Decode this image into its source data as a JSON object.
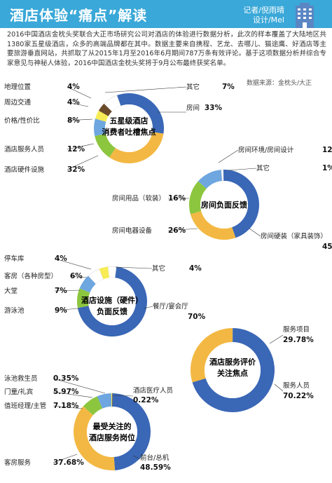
{
  "header": {
    "title": "酒店体验“痛点”解读",
    "credit_line1": "记者/倪雨晴",
    "credit_line2": "设计/Mel"
  },
  "intro": "2016中国酒店金枕头奖联合大正市场研究公司对酒店的体验进行数据分析，此次的样本覆盖了大陆地区共1380家五星级酒店，众多的高端品牌都在其中。数据主要来自携程、艺龙、去哪儿、猫途鹰、好酒店等主要旅游垂直网站，共抓取了从2015年1月至2016年6月期间787万条有效评论。基于这项数据分析并综合专家意见与神秘人体验，2016中国酒店金枕头奖将于9月公布最终获奖名单。",
  "source": "数据来源：金枕头/大正",
  "colors": {
    "blue": "#3a67b6",
    "light_blue": "#6ea6e0",
    "yellow": "#f3b843",
    "green": "#8cc63e",
    "brown": "#6b4a2b",
    "pale_yellow": "#f7ec55",
    "header": "#3aa8d8"
  },
  "chart_data": [
    {
      "type": "pie",
      "title": "五星级酒店消费者吐槽焦点",
      "slices": [
        {
          "label": "房间",
          "value": 33,
          "display": "33%",
          "color": "#3a67b6"
        },
        {
          "label": "酒店硬件设施",
          "value": 32,
          "display": "32%",
          "color": "#f3b843"
        },
        {
          "label": "酒店服务人员",
          "value": 12,
          "display": "12%",
          "color": "#8cc63e"
        },
        {
          "label": "价格/性价比",
          "value": 8,
          "display": "8%",
          "color": "#6ea6e0"
        },
        {
          "label": "周边交通",
          "value": 4,
          "display": "4%",
          "color": "#f7ec55"
        },
        {
          "label": "地理位置",
          "value": 4,
          "display": "4%",
          "color": "#6b4a2b"
        },
        {
          "label": "其它",
          "value": 7,
          "display": "7%",
          "color": "#ffffff"
        }
      ]
    },
    {
      "type": "pie",
      "title": "房间负面反馈",
      "slices": [
        {
          "label": "房间环境/房间设计",
          "value": 12,
          "display": "12%",
          "color": "#6ea6e0"
        },
        {
          "label": "其它",
          "value": 1,
          "display": "1%",
          "color": "#ffffff"
        },
        {
          "label": "房间硬装（家具装饰）",
          "value": 45,
          "display": "45%",
          "color": "#3a67b6"
        },
        {
          "label": "房间电器设备",
          "value": 26,
          "display": "26%",
          "color": "#f3b843"
        },
        {
          "label": "房间用品（软装）",
          "value": 16,
          "display": "16%",
          "color": "#8cc63e"
        }
      ]
    },
    {
      "type": "pie",
      "title": "酒店设施（硬件）负面反馈",
      "slices": [
        {
          "label": "其它",
          "value": 4,
          "display": "4%",
          "color": "#ffffff"
        },
        {
          "label": "餐厅/宴会厅",
          "value": 70,
          "display": "70%",
          "color": "#3a67b6"
        },
        {
          "label": "游泳池",
          "value": 9,
          "display": "9%",
          "color": "#8cc63e"
        },
        {
          "label": "大堂",
          "value": 7,
          "display": "7%",
          "color": "#6ea6e0"
        },
        {
          "label": "客房（各种房型）",
          "value": 6,
          "display": "6%",
          "color": "#ffffff"
        },
        {
          "label": "停车库",
          "value": 4,
          "display": "4%",
          "color": "#f7ec55"
        }
      ]
    },
    {
      "type": "pie",
      "title": "酒店服务评价关注焦点",
      "slices": [
        {
          "label": "服务项目",
          "value": 29.78,
          "display": "29.78%",
          "color": "#f3b843"
        },
        {
          "label": "服务人员",
          "value": 70.22,
          "display": "70.22%",
          "color": "#3a67b6"
        }
      ]
    },
    {
      "type": "pie",
      "title": "最受关注的酒店服务岗位",
      "slices": [
        {
          "label": "酒店医疗人员",
          "value": 0.22,
          "display": "0.22%",
          "color": "#6b4a2b"
        },
        {
          "label": "前台/总机",
          "value": 48.59,
          "display": "48.59%",
          "color": "#3a67b6"
        },
        {
          "label": "客房服务",
          "value": 37.68,
          "display": "37.68%",
          "color": "#f3b843"
        },
        {
          "label": "值班经理/主管",
          "value": 7.18,
          "display": "7.18%",
          "color": "#8cc63e"
        },
        {
          "label": "门童/礼宾",
          "value": 5.97,
          "display": "5.97%",
          "color": "#6ea6e0"
        },
        {
          "label": "泳池救生员",
          "value": 0.35,
          "display": "0.35%",
          "color": "#f7ec55"
        }
      ]
    }
  ]
}
